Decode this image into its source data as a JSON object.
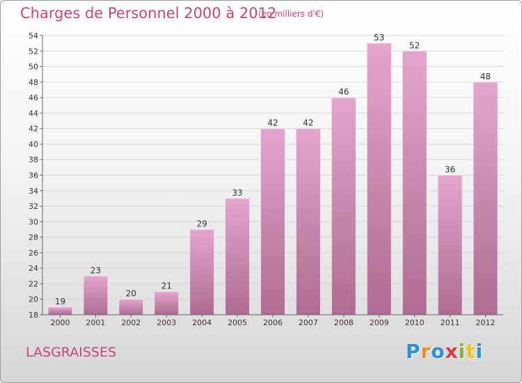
{
  "title": "Charges de Personnel 2000 à 2012",
  "unit_note": "(en milliers d'€)",
  "commune": "LASGRAISSES",
  "logo": {
    "letters": [
      "P",
      "r",
      "o",
      "x",
      "i",
      "t",
      "i"
    ],
    "colors": [
      "#2e8fd4",
      "#f08a1c",
      "#2e8fd4",
      "#e03a3a",
      "#7ab92e",
      "#f0c01c",
      "#2e8fd4"
    ]
  },
  "colors": {
    "accent": "#c8437a",
    "bar_top": "#e2a6cc",
    "bar_bottom": "#ad6c93",
    "grid": "#d8d8d8"
  },
  "chart_data": {
    "type": "bar",
    "categories": [
      "2000",
      "2001",
      "2002",
      "2003",
      "2004",
      "2005",
      "2006",
      "2007",
      "2008",
      "2009",
      "2010",
      "2011",
      "2012"
    ],
    "values": [
      19,
      23,
      20,
      21,
      29,
      33,
      42,
      42,
      46,
      53,
      52,
      36,
      48
    ],
    "title": "Charges de Personnel 2000 à 2012",
    "ylim": [
      18,
      54
    ],
    "yticks": [
      18,
      20,
      22,
      24,
      26,
      28,
      30,
      32,
      34,
      36,
      38,
      40,
      42,
      44,
      46,
      48,
      50,
      52,
      54
    ],
    "grid": true
  }
}
